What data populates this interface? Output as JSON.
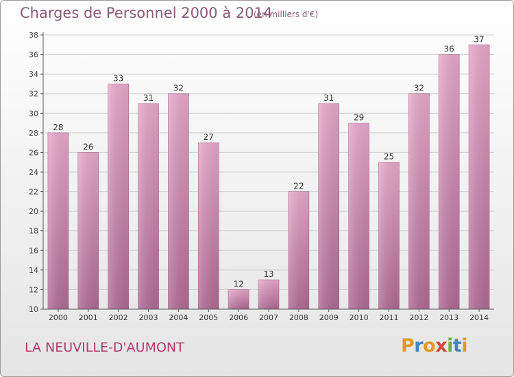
{
  "header": {
    "title": "Charges de Personnel 2000 à 2014",
    "subtitle": "(en milliers d'€)"
  },
  "footer": {
    "city": "LA NEUVILLE-D'AUMONT",
    "logo_letters": [
      "P",
      "r",
      "o",
      "x",
      "i",
      "t",
      "i"
    ],
    "logo_colors": [
      "#e39a1c",
      "#3e86c7",
      "#e39a1c",
      "#d44a3a",
      "#6fae3a",
      "#3e86c7",
      "#e39a1c"
    ]
  },
  "colors": {
    "bar_top": "#e8a9cc",
    "bar_bottom": "#b06a94",
    "axis": "#555555",
    "grid": "#cfcfcf"
  },
  "chart_data": {
    "type": "bar",
    "title": "Charges de Personnel 2000 à 2014",
    "subtitle": "(en milliers d'€)",
    "categories": [
      "2000",
      "2001",
      "2002",
      "2003",
      "2004",
      "2005",
      "2006",
      "2007",
      "2008",
      "2009",
      "2010",
      "2011",
      "2012",
      "2013",
      "2014"
    ],
    "values": [
      28,
      26,
      33,
      31,
      32,
      27,
      12,
      13,
      22,
      31,
      29,
      25,
      32,
      36,
      37
    ],
    "ylim": [
      10,
      38
    ],
    "yticks": [
      10,
      12,
      14,
      16,
      18,
      20,
      22,
      24,
      26,
      28,
      30,
      32,
      34,
      36,
      38
    ],
    "grid": true,
    "data_labels": true
  }
}
